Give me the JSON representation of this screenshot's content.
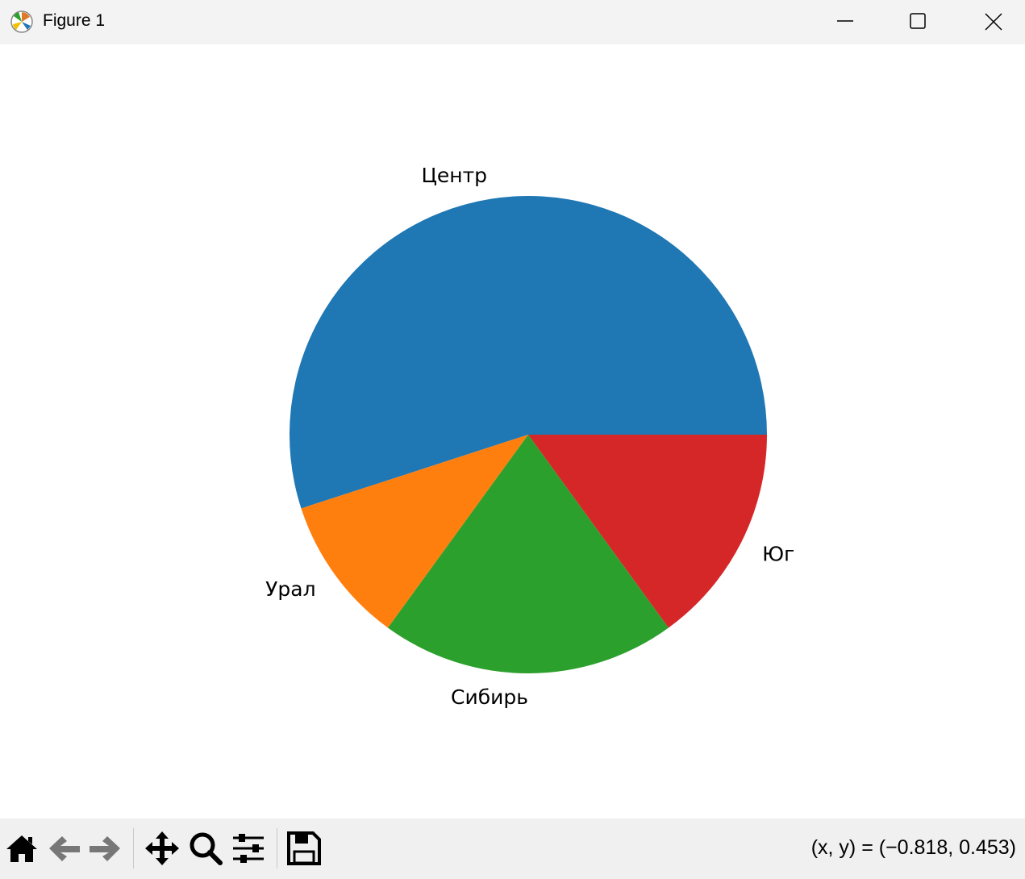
{
  "window": {
    "title": "Figure 1"
  },
  "toolbar": {
    "buttons": [
      "home-icon",
      "back-arrow-icon",
      "forward-arrow-icon",
      "pan-icon",
      "zoom-icon",
      "configure-subplots-icon",
      "save-icon"
    ],
    "coords": "(x, y) = (−0.818, 0.453)"
  },
  "chart_data": {
    "type": "pie",
    "categories": [
      "Центр",
      "Урал",
      "Сибирь",
      "Юг"
    ],
    "values": [
      55,
      10,
      20,
      15
    ],
    "colors": [
      "#1f77b4",
      "#ff7f0e",
      "#2ca02c",
      "#d62728"
    ],
    "start_angle_deg": 0,
    "direction": "counterclockwise"
  }
}
